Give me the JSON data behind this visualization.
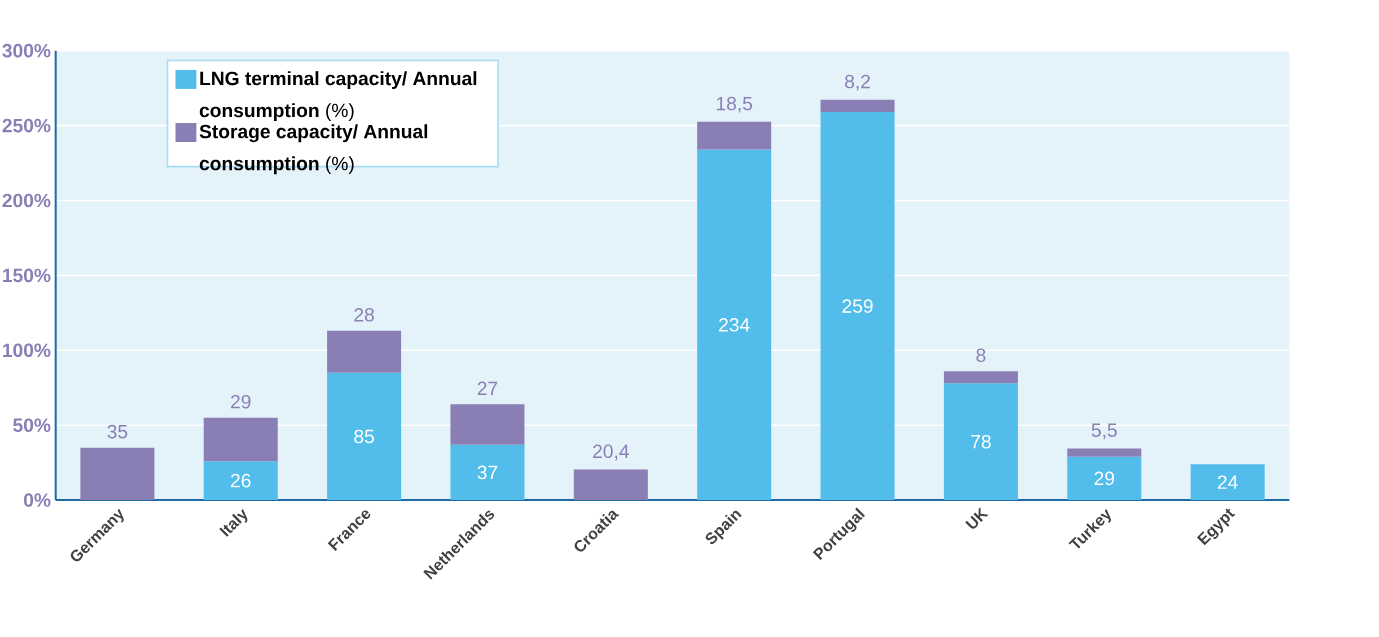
{
  "chart_data": {
    "type": "bar",
    "stacked": true,
    "categories": [
      "Germany",
      "Italy",
      "France",
      "Netherlands",
      "Croatia",
      "Spain",
      "Portugal",
      "UK",
      "Turkey",
      "Egypt"
    ],
    "series": [
      {
        "name": "**LNG terminal capacity/ Annual consumption** (%)",
        "color": "#52bdea",
        "values": [
          null,
          26,
          85,
          37,
          null,
          234,
          259,
          78,
          29,
          24
        ],
        "value_labels": [
          null,
          "26",
          "85",
          "37",
          null,
          "234",
          "259",
          "78",
          "29",
          "24"
        ]
      },
      {
        "name": "**Storage capacity/ Annual consumption** (%)",
        "color": "#8a7fb5",
        "values": [
          35,
          29,
          28,
          27,
          20.4,
          18.5,
          8.2,
          8,
          5.5,
          null
        ],
        "value_labels": [
          "35",
          "29",
          "28",
          "27",
          "20,4",
          "18,5",
          "8,2",
          "8",
          "5,5",
          null
        ]
      }
    ],
    "ylim": [
      0,
      300
    ],
    "yticks": [
      {
        "value": 0,
        "label": "0%"
      },
      {
        "value": 50,
        "label": "50%"
      },
      {
        "value": 100,
        "label": "100%"
      },
      {
        "value": 150,
        "label": "150%"
      },
      {
        "value": 200,
        "label": "200%"
      },
      {
        "value": 250,
        "label": "250%"
      },
      {
        "value": 300,
        "label": "300%"
      }
    ],
    "grid": "y",
    "legend": "top left"
  }
}
